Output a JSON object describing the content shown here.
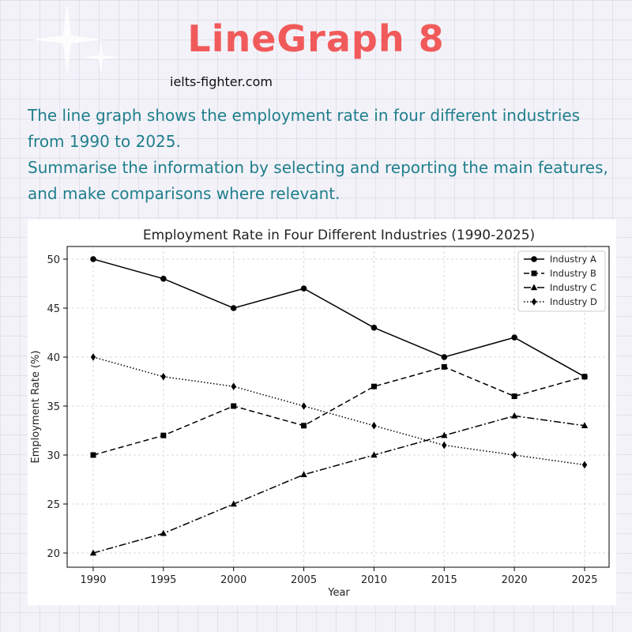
{
  "header": {
    "title": "LineGraph 8",
    "website": "ielts-fighter.com"
  },
  "task": {
    "line1": "The line graph shows the employment rate in four different industries from 1990 to 2025.",
    "line2": "Summarise the information by selecting and reporting the main features, and make comparisons where relevant."
  },
  "colors": {
    "title": "#f15a5a",
    "prompt": "#1f7f8c",
    "series": "#000000"
  },
  "chart_data": {
    "type": "line",
    "title": "Employment Rate in Four Different Industries (1990-2025)",
    "xlabel": "Year",
    "ylabel": "Employment Rate (%)",
    "x": [
      1990,
      1995,
      2000,
      2005,
      2010,
      2015,
      2020,
      2025
    ],
    "xlim": [
      1990,
      2025
    ],
    "ylim": [
      20,
      50
    ],
    "yticks": [
      20,
      25,
      30,
      35,
      40,
      45,
      50
    ],
    "grid": true,
    "legend_position": "top-right",
    "series": [
      {
        "name": "Industry A",
        "values": [
          50,
          48,
          45,
          47,
          43,
          40,
          42,
          38
        ],
        "marker": "circle",
        "line_style": "solid"
      },
      {
        "name": "Industry B",
        "values": [
          30,
          32,
          35,
          33,
          37,
          39,
          36,
          38
        ],
        "marker": "square",
        "line_style": "dashed"
      },
      {
        "name": "Industry C",
        "values": [
          20,
          22,
          25,
          28,
          30,
          32,
          34,
          33
        ],
        "marker": "triangle",
        "line_style": "dashdot"
      },
      {
        "name": "Industry D",
        "values": [
          40,
          38,
          37,
          35,
          33,
          31,
          30,
          29
        ],
        "marker": "diamond",
        "line_style": "dotted"
      }
    ]
  }
}
